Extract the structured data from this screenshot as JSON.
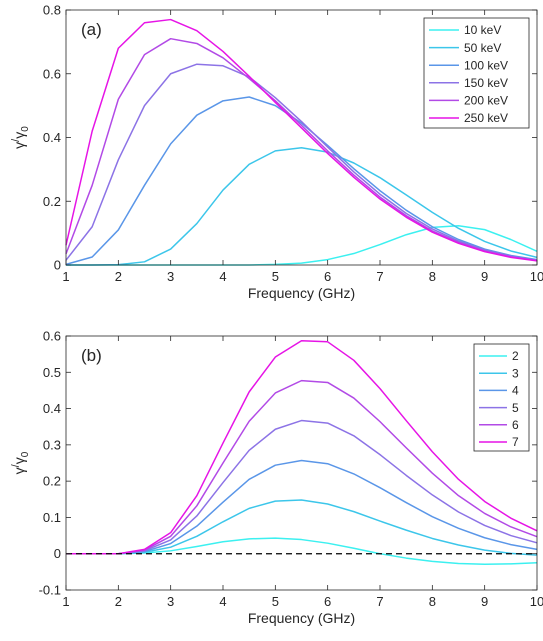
{
  "chart_data": [
    {
      "type": "line",
      "panel_label": "(a)",
      "xlabel": "Frequency (GHz)",
      "ylabel_main": "γ",
      "ylabel_sub": "0",
      "ylabel_sep": "/",
      "ylabel_denom": "γ",
      "xlim": [
        1,
        10
      ],
      "ylim": [
        0,
        0.8
      ],
      "xticks": [
        "1",
        "2",
        "3",
        "4",
        "5",
        "6",
        "7",
        "8",
        "9",
        "10"
      ],
      "yticks": [
        "0",
        "0.2",
        "0.4",
        "0.6",
        "0.8"
      ],
      "legend_position": "top-right",
      "grid": false,
      "x": [
        1,
        1.5,
        2,
        2.5,
        3,
        3.5,
        4,
        4.5,
        5,
        5.5,
        6,
        6.5,
        7,
        7.5,
        8,
        8.5,
        9,
        9.5,
        10
      ],
      "series": [
        {
          "name": "10 keV",
          "color": "#3cf0f0",
          "values": [
            0,
            0,
            0,
            0,
            0,
            0,
            0,
            0,
            0.002,
            0.006,
            0.017,
            0.036,
            0.064,
            0.095,
            0.118,
            0.123,
            0.111,
            0.08,
            0.043
          ]
        },
        {
          "name": "50 keV",
          "color": "#3cc6ea",
          "values": [
            0,
            0,
            0.001,
            0.01,
            0.05,
            0.13,
            0.235,
            0.316,
            0.358,
            0.368,
            0.354,
            0.32,
            0.274,
            0.22,
            0.165,
            0.115,
            0.074,
            0.044,
            0.024
          ]
        },
        {
          "name": "100 keV",
          "color": "#5a96e8",
          "values": [
            0.002,
            0.025,
            0.11,
            0.25,
            0.38,
            0.47,
            0.515,
            0.527,
            0.5,
            0.445,
            0.375,
            0.302,
            0.233,
            0.172,
            0.12,
            0.08,
            0.05,
            0.03,
            0.017
          ]
        },
        {
          "name": "150 keV",
          "color": "#8c73e6",
          "values": [
            0.015,
            0.12,
            0.33,
            0.5,
            0.6,
            0.63,
            0.625,
            0.59,
            0.525,
            0.45,
            0.37,
            0.292,
            0.222,
            0.162,
            0.113,
            0.075,
            0.047,
            0.028,
            0.015
          ]
        },
        {
          "name": "200 keV",
          "color": "#b24ae6",
          "values": [
            0.035,
            0.25,
            0.52,
            0.66,
            0.71,
            0.695,
            0.65,
            0.585,
            0.515,
            0.438,
            0.358,
            0.282,
            0.213,
            0.155,
            0.107,
            0.071,
            0.044,
            0.026,
            0.014
          ]
        },
        {
          "name": "250 keV",
          "color": "#e614e6",
          "values": [
            0.062,
            0.42,
            0.68,
            0.76,
            0.77,
            0.735,
            0.67,
            0.592,
            0.51,
            0.43,
            0.35,
            0.275,
            0.207,
            0.15,
            0.103,
            0.068,
            0.042,
            0.024,
            0.013
          ]
        }
      ]
    },
    {
      "type": "line",
      "panel_label": "(b)",
      "xlabel": "Frequency (GHz)",
      "ylabel_main": "γ",
      "ylabel_sub": "0",
      "ylabel_sep": "/",
      "ylabel_denom": "γ",
      "xlim": [
        1,
        10
      ],
      "ylim": [
        -0.1,
        0.6
      ],
      "xticks": [
        "1",
        "2",
        "3",
        "4",
        "5",
        "6",
        "7",
        "8",
        "9",
        "10"
      ],
      "yticks": [
        "-0.1",
        "0",
        "0.1",
        "0.2",
        "0.3",
        "0.4",
        "0.5",
        "0.6"
      ],
      "legend_position": "top-right",
      "grid": false,
      "reference_line": {
        "y": 0,
        "style": "dashed",
        "color": "#000000"
      },
      "x": [
        1,
        1.5,
        2,
        2.5,
        3,
        3.5,
        4,
        4.5,
        5,
        5.5,
        6,
        6.5,
        7,
        7.5,
        8,
        8.5,
        9,
        9.5,
        10
      ],
      "series": [
        {
          "name": "2",
          "color": "#3cf0f0",
          "values": [
            0,
            0,
            0,
            0.002,
            0.008,
            0.02,
            0.033,
            0.041,
            0.043,
            0.039,
            0.029,
            0.015,
            0,
            -0.012,
            -0.021,
            -0.027,
            -0.029,
            -0.028,
            -0.025
          ]
        },
        {
          "name": "3",
          "color": "#3cc6ea",
          "values": [
            0,
            0,
            0,
            0.004,
            0.018,
            0.048,
            0.088,
            0.125,
            0.145,
            0.148,
            0.137,
            0.116,
            0.09,
            0.065,
            0.042,
            0.024,
            0.01,
            0.001,
            -0.004
          ]
        },
        {
          "name": "4",
          "color": "#5a96e8",
          "values": [
            0,
            0,
            0,
            0.006,
            0.028,
            0.076,
            0.142,
            0.205,
            0.244,
            0.257,
            0.248,
            0.22,
            0.182,
            0.141,
            0.102,
            0.07,
            0.044,
            0.025,
            0.012
          ]
        },
        {
          "name": "5",
          "color": "#8c73e6",
          "values": [
            0,
            0,
            0,
            0.008,
            0.038,
            0.104,
            0.196,
            0.285,
            0.343,
            0.367,
            0.36,
            0.325,
            0.273,
            0.216,
            0.162,
            0.115,
            0.078,
            0.05,
            0.03
          ]
        },
        {
          "name": "6",
          "color": "#b24ae6",
          "values": [
            0,
            0,
            0,
            0.01,
            0.048,
            0.132,
            0.25,
            0.365,
            0.443,
            0.477,
            0.472,
            0.429,
            0.364,
            0.292,
            0.222,
            0.16,
            0.111,
            0.074,
            0.047
          ]
        },
        {
          "name": "7",
          "color": "#e614e6",
          "values": [
            0,
            0,
            0,
            0.012,
            0.058,
            0.16,
            0.305,
            0.446,
            0.542,
            0.587,
            0.584,
            0.533,
            0.455,
            0.367,
            0.281,
            0.205,
            0.144,
            0.098,
            0.063
          ]
        }
      ]
    }
  ]
}
